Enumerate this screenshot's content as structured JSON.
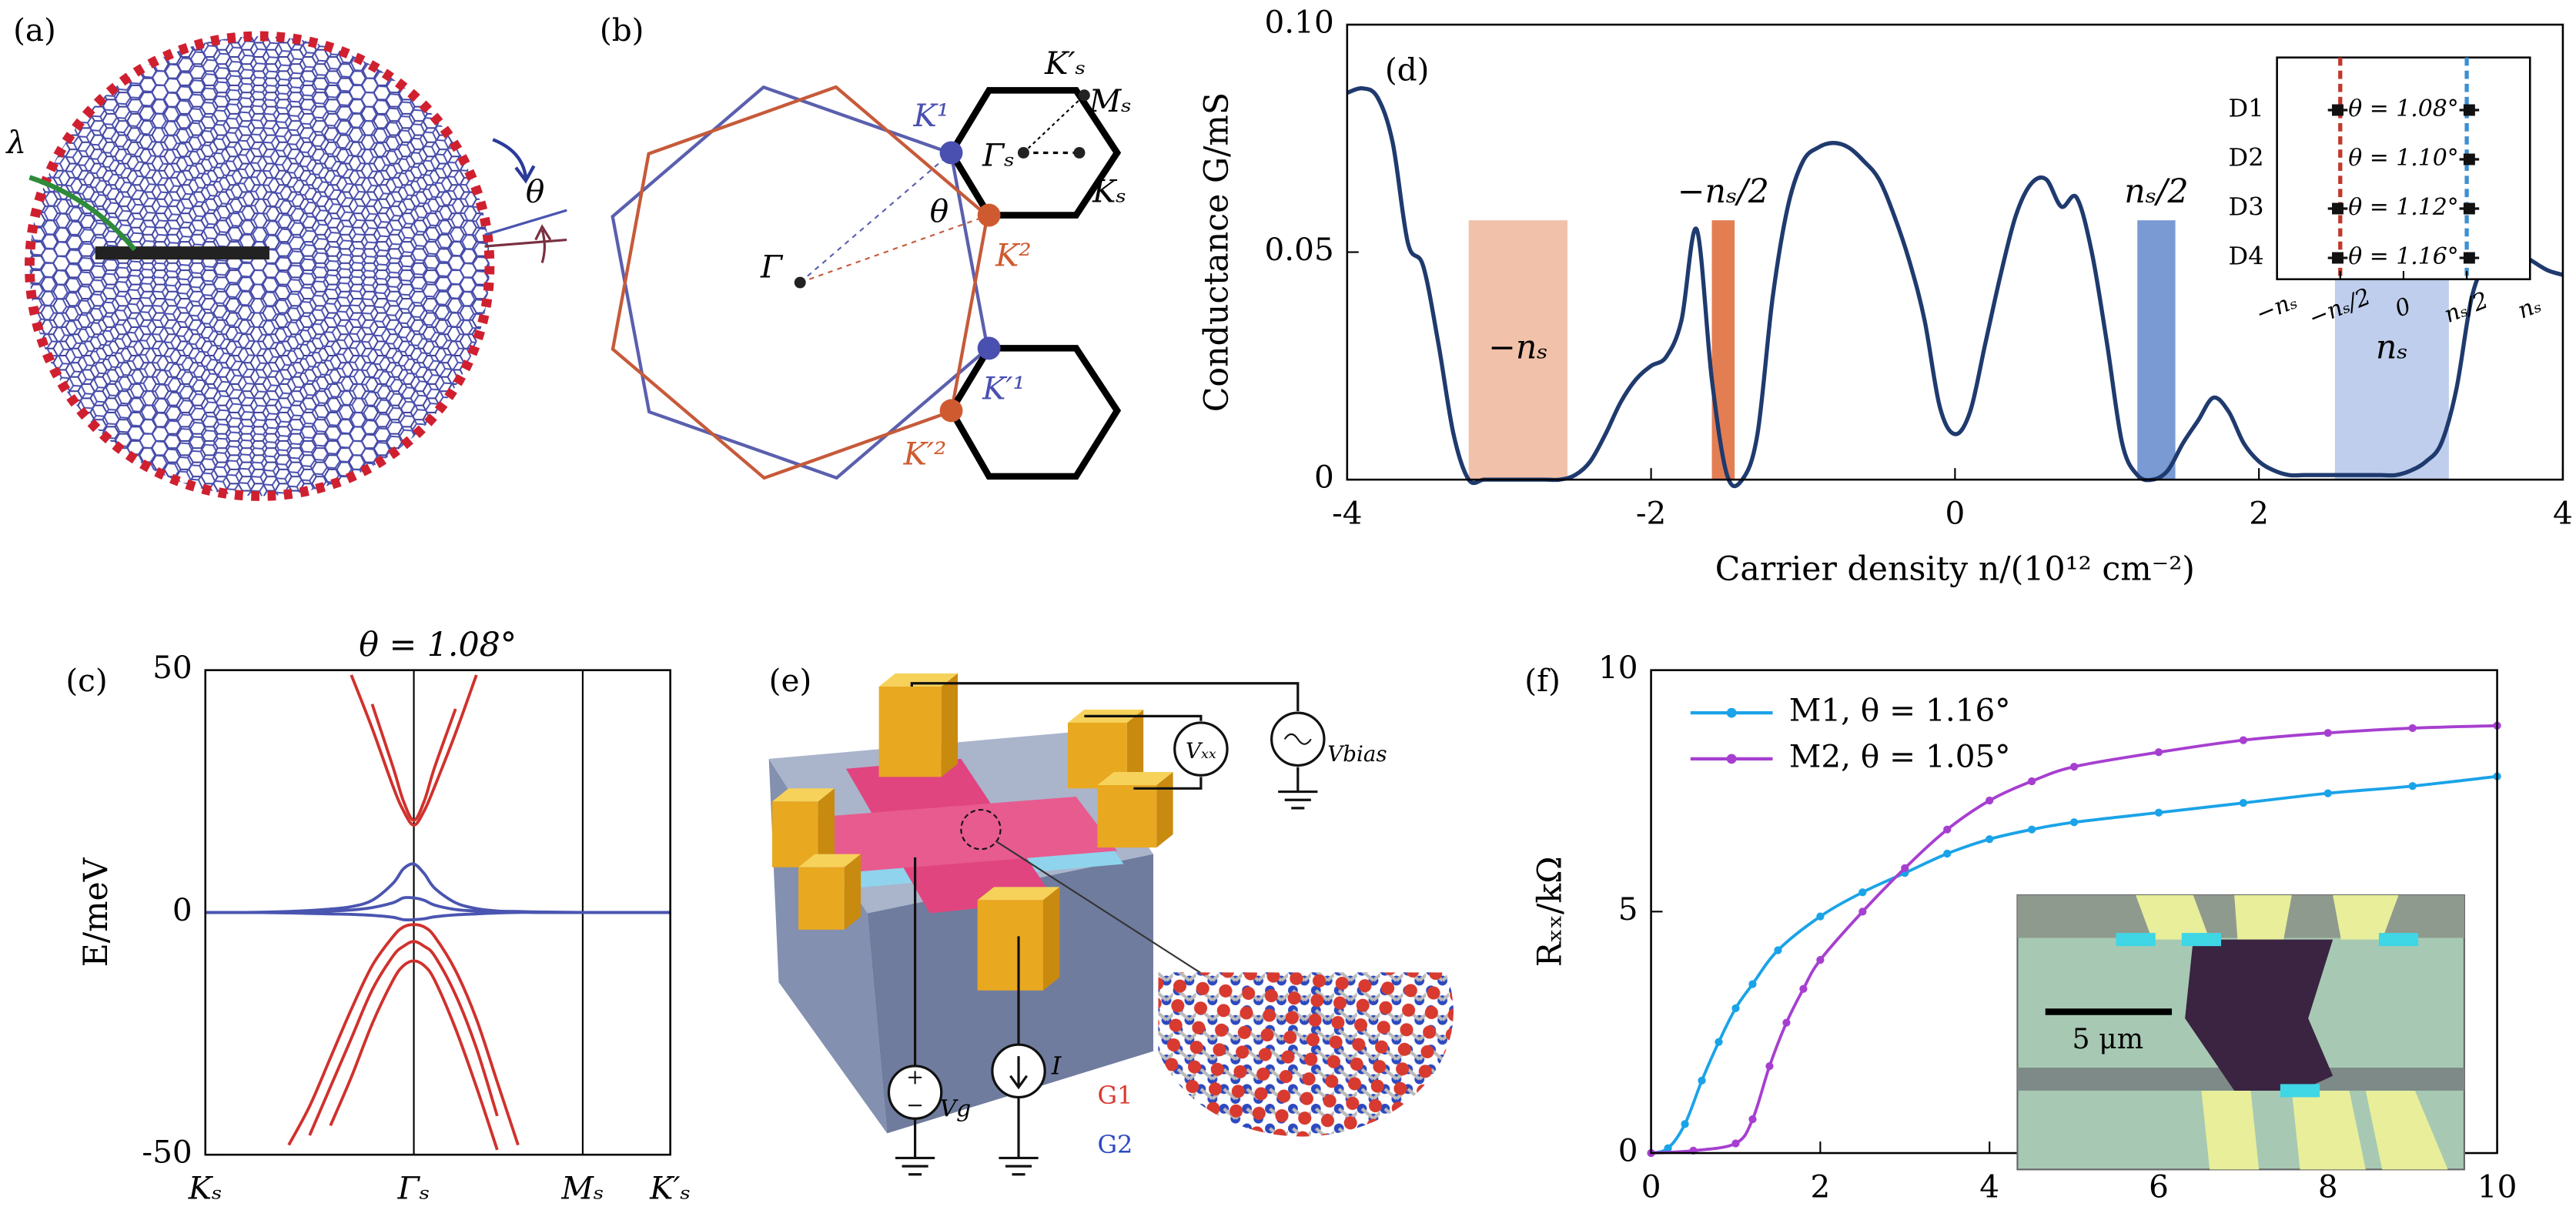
{
  "panels": [
    "(a)",
    "(b)",
    "(c)",
    "(d)",
    "(e)",
    "(f)"
  ],
  "panel_a": {
    "labels": [
      "λ",
      "θ"
    ]
  },
  "panel_b": {
    "labels": [
      "K′ₛ",
      "Mₛ",
      "Γₛ",
      "Kₛ",
      "K¹",
      "θ",
      "K²",
      "Γ",
      "K′¹",
      "K′²"
    ]
  },
  "panel_e": {
    "labels": [
      "Vₓₓ",
      "Vbias",
      "Vg",
      "I",
      "G1",
      "G2"
    ]
  },
  "chart_data": [
    {
      "type": "line",
      "title": "θ = 1.08°",
      "ylabel": "E/meV",
      "xlim": [
        0,
        2.23
      ],
      "xticks": [
        {
          "value": 0,
          "label": "Kₛ"
        },
        {
          "value": 1,
          "label": "Γₛ"
        },
        {
          "value": 1.81,
          "label": "Mₛ"
        },
        {
          "value": 2.23,
          "label": "K′ₛ"
        }
      ],
      "x_grid": true,
      "ylim": [
        -50,
        50
      ],
      "yticks": [
        -50,
        0,
        50
      ],
      "x": [
        0,
        0.2,
        0.4,
        0.5,
        0.6,
        0.7,
        0.8,
        0.9,
        0.95,
        1,
        1.05,
        1.1,
        1.2,
        1.3,
        1.4,
        1.5,
        1.6,
        1.81,
        2,
        2.23
      ],
      "series": [
        {
          "color": "#d0312d",
          "values": [
            null,
            null,
            null,
            null,
            null,
            49,
            38,
            26,
            21,
            18,
            21,
            26,
            37,
            49,
            null,
            null,
            null,
            null,
            null,
            null
          ]
        },
        {
          "color": "#d0312d",
          "values": [
            null,
            null,
            null,
            null,
            null,
            null,
            43,
            30,
            23,
            19,
            23,
            30,
            42,
            null,
            null,
            null,
            null,
            null,
            null,
            null
          ]
        },
        {
          "color": "#d0312d",
          "values": [
            null,
            null,
            -48,
            -40,
            -30,
            -20,
            -11,
            -5,
            -3,
            -2.5,
            -3,
            -5,
            -12,
            -22,
            -35,
            -48,
            null,
            null,
            null,
            null
          ]
        },
        {
          "color": "#d0312d",
          "values": [
            null,
            null,
            null,
            -46,
            -36,
            -26,
            -16,
            -9,
            -7,
            -6,
            -7,
            -9,
            -17,
            -28,
            -42,
            null,
            null,
            null,
            null,
            null
          ]
        },
        {
          "color": "#d0312d",
          "values": [
            null,
            null,
            null,
            null,
            -44,
            -34,
            -23,
            -14,
            -11,
            -10,
            -11,
            -14,
            -24,
            -36,
            -49,
            null,
            null,
            null,
            null,
            null
          ]
        },
        {
          "color": "#4a55b0",
          "values": [
            0,
            0,
            0.2,
            0.4,
            0.7,
            1.2,
            2.5,
            6,
            9,
            10,
            8,
            5,
            2,
            0.8,
            0.3,
            0.2,
            0.1,
            0,
            0,
            0
          ]
        },
        {
          "color": "#4a55b0",
          "values": [
            0,
            0,
            0.1,
            0.2,
            0.3,
            0.5,
            1,
            2,
            3,
            3,
            2.5,
            1.5,
            0.6,
            0.3,
            0.1,
            0.1,
            0,
            0,
            0,
            0
          ]
        },
        {
          "color": "#4a55b0",
          "values": [
            0,
            0,
            -0.1,
            -0.2,
            -0.3,
            -0.4,
            -0.6,
            -1,
            -1.5,
            -1.5,
            -1.3,
            -0.9,
            -0.5,
            -0.3,
            -0.1,
            0,
            0,
            0,
            0,
            0
          ]
        }
      ]
    },
    {
      "type": "line",
      "xlabel": "Carrier density n/(10¹² cm⁻²)",
      "ylabel": "Conductance G/mS",
      "xlim": [
        -4,
        4
      ],
      "xticks": [
        -4,
        -2,
        0,
        2,
        4
      ],
      "ylim": [
        0,
        0.1
      ],
      "yticks": [
        0,
        0.05,
        {
          "value": 0.1,
          "label": "0.10"
        }
      ],
      "x": [
        -4,
        -3.9,
        -3.8,
        -3.7,
        -3.6,
        -3.5,
        -3.4,
        -3.3,
        -3.2,
        -3.1,
        -3,
        -2.9,
        -2.8,
        -2.7,
        -2.6,
        -2.5,
        -2.4,
        -2.3,
        -2.2,
        -2.1,
        -2,
        -1.9,
        -1.8,
        -1.7,
        -1.6,
        -1.5,
        -1.4,
        -1.3,
        -1.2,
        -1.1,
        -1,
        -0.9,
        -0.8,
        -0.7,
        -0.6,
        -0.5,
        -0.4,
        -0.3,
        -0.2,
        -0.1,
        0,
        0.1,
        0.2,
        0.3,
        0.4,
        0.5,
        0.6,
        0.7,
        0.8,
        0.9,
        1,
        1.1,
        1.2,
        1.3,
        1.4,
        1.5,
        1.6,
        1.7,
        1.8,
        1.9,
        2,
        2.1,
        2.2,
        2.3,
        2.4,
        2.5,
        2.6,
        2.7,
        2.8,
        2.9,
        3,
        3.1,
        3.2,
        3.3,
        3.4,
        3.5,
        3.6,
        3.7,
        3.8,
        3.9,
        4
      ],
      "series": [
        {
          "color": "#1f3a6e",
          "values": [
            0.085,
            0.086,
            0.084,
            0.074,
            0.052,
            0.047,
            0.03,
            0.01,
            0,
            0,
            0,
            0,
            0,
            0,
            0,
            0.001,
            0.004,
            0.01,
            0.017,
            0.022,
            0.025,
            0.027,
            0.035,
            0.055,
            0.022,
            0.001,
            0,
            0.01,
            0.04,
            0.06,
            0.07,
            0.073,
            0.074,
            0.073,
            0.07,
            0.066,
            0.058,
            0.048,
            0.035,
            0.016,
            0.01,
            0.015,
            0.03,
            0.045,
            0.058,
            0.065,
            0.066,
            0.06,
            0.062,
            0.05,
            0.03,
            0.008,
            0.001,
            0,
            0.002,
            0.008,
            0.013,
            0.018,
            0.015,
            0.008,
            0.004,
            0.002,
            0.001,
            0.001,
            0.001,
            0.001,
            0.001,
            0.001,
            0.001,
            0.001,
            0.002,
            0.004,
            0.008,
            0.02,
            0.04,
            0.048,
            0.05,
            0.05,
            0.048,
            0.046,
            0.045
          ]
        }
      ],
      "regions": [
        {
          "label": "−nₛ",
          "x0": -3.2,
          "x1": -2.55,
          "y1": 0.057,
          "color": "#efbba0"
        },
        {
          "label": "−nₛ/2",
          "x0": -1.6,
          "x1": -1.45,
          "y1": 0.057,
          "color": "#e07040"
        },
        {
          "label": "nₛ/2",
          "x0": 1.2,
          "x1": 1.45,
          "y1": 0.057,
          "color": "#6b8fcf"
        },
        {
          "label": "nₛ",
          "x0": 2.5,
          "x1": 3.25,
          "y1": 0.057,
          "color": "#b8c9ea"
        }
      ],
      "inset": {
        "rows": [
          "D1",
          "D2",
          "D3",
          "D4"
        ],
        "labels": [
          "θ = 1.08°",
          "θ = 1.10°",
          "θ = 1.12°",
          "θ = 1.16°"
        ],
        "xlim": [
          -1,
          1
        ],
        "xticks": [
          {
            "value": -1,
            "label": "−nₛ"
          },
          {
            "value": -0.5,
            "label": "−nₛ/2"
          },
          0,
          {
            "value": 0.5,
            "label": "nₛ/2"
          },
          {
            "value": 1,
            "label": "nₛ"
          }
        ],
        "lines": [
          {
            "value": -0.5,
            "color": "#c0392b"
          },
          {
            "value": 0.5,
            "color": "#3d8fd1"
          }
        ],
        "left": [
          -0.52,
          null,
          -0.52,
          -0.52
        ],
        "right": [
          0.52,
          0.52,
          0.52,
          0.52
        ]
      }
    },
    {
      "type": "line",
      "ylabel": "Rₓₓ/kΩ",
      "xlim": [
        0,
        10
      ],
      "xticks": [
        0,
        2,
        4,
        6,
        8,
        10
      ],
      "ylim": [
        0,
        10
      ],
      "yticks": [
        0,
        5,
        10
      ],
      "legend": "upper left",
      "markers": true,
      "series": [
        {
          "name": "M1, θ = 1.16°",
          "color": "#1aa3e8",
          "x": [
            0,
            0.2,
            0.4,
            0.6,
            0.8,
            1,
            1.2,
            1.5,
            2,
            2.5,
            3,
            3.5,
            4,
            4.5,
            5,
            6,
            7,
            8,
            9,
            10
          ],
          "values": [
            0,
            0.1,
            0.6,
            1.5,
            2.3,
            3,
            3.5,
            4.2,
            4.9,
            5.4,
            5.8,
            6.2,
            6.5,
            6.7,
            6.85,
            7.05,
            7.25,
            7.45,
            7.6,
            7.8
          ]
        },
        {
          "name": "M2, θ = 1.05°",
          "color": "#a63fd0",
          "x": [
            0,
            0.5,
            1,
            1.2,
            1.4,
            1.6,
            1.8,
            2,
            2.5,
            3,
            3.5,
            4,
            4.5,
            5,
            6,
            7,
            8,
            9,
            10
          ],
          "values": [
            0,
            0.05,
            0.2,
            0.7,
            1.8,
            2.7,
            3.4,
            4,
            5,
            5.9,
            6.7,
            7.3,
            7.7,
            8,
            8.3,
            8.55,
            8.7,
            8.8,
            8.85
          ]
        }
      ],
      "inset_image": {
        "scale_label": "5 μm"
      }
    }
  ]
}
